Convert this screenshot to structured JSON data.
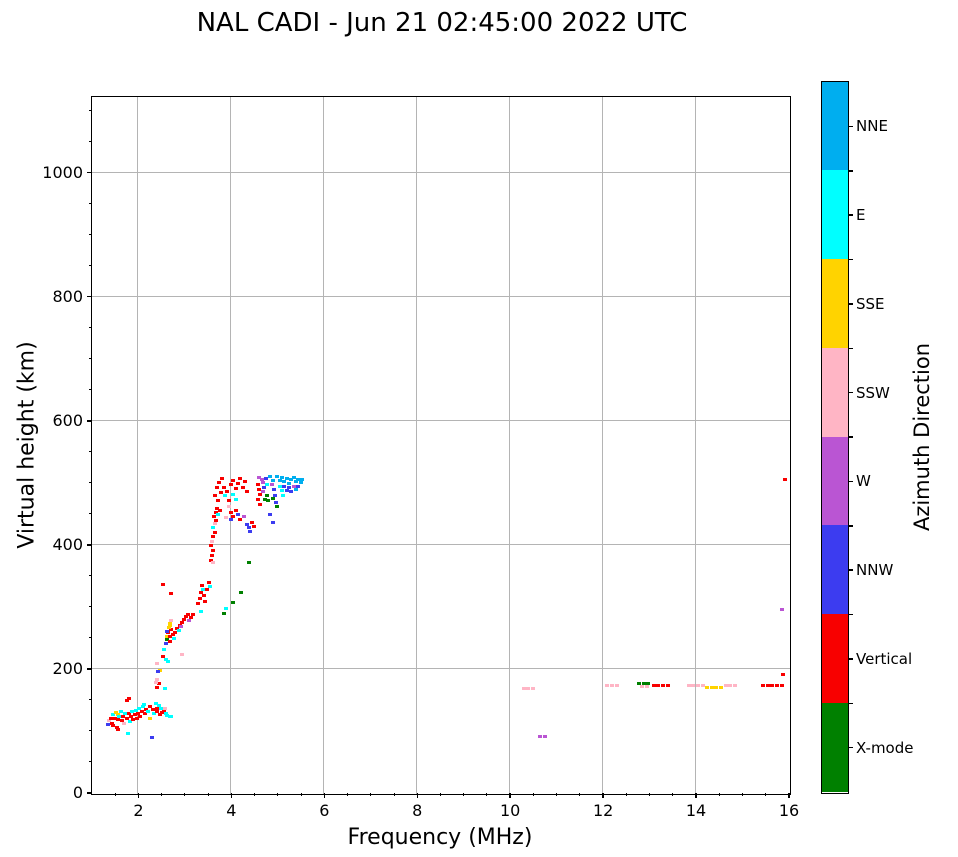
{
  "chart_data": {
    "type": "scatter",
    "title": "NAL CADI - Jun 21 02:45:00 2022 UTC",
    "xlabel": "Frequency (MHz)",
    "ylabel": "Virtual height (km)",
    "colorbar_label": "Azimuth Direction",
    "xlim": [
      1,
      16
    ],
    "ylim": [
      0,
      1122
    ],
    "xticks": [
      2,
      4,
      6,
      8,
      10,
      12,
      14,
      16
    ],
    "yticks": [
      0,
      200,
      400,
      600,
      800,
      1000
    ],
    "x_minor_step": 0.5,
    "y_minor_step": 50,
    "grid": true,
    "grid_color": "#b4b4b4",
    "marker": "small-square",
    "directions_bottom_to_top": [
      {
        "key": "X",
        "label": "X-mode",
        "color": "#008000"
      },
      {
        "key": "V",
        "label": "Vertical",
        "color": "#f80000"
      },
      {
        "key": "NNW",
        "label": "NNW",
        "color": "#3c3cf0"
      },
      {
        "key": "W",
        "label": "W",
        "color": "#ba55d3"
      },
      {
        "key": "SSW",
        "label": "SSW",
        "color": "#ffb5c5"
      },
      {
        "key": "SSE",
        "label": "SSE",
        "color": "#ffd300"
      },
      {
        "key": "E",
        "label": "E",
        "color": "#00ffff"
      },
      {
        "key": "NNE",
        "label": "NNE",
        "color": "#00aeef"
      }
    ],
    "points": [
      [
        1.35,
        110,
        "NNW"
      ],
      [
        1.38,
        116,
        "SSW"
      ],
      [
        1.42,
        119,
        "V"
      ],
      [
        1.45,
        112,
        "V"
      ],
      [
        1.47,
        125,
        "E"
      ],
      [
        1.5,
        120,
        "V"
      ],
      [
        1.52,
        129,
        "SSE"
      ],
      [
        1.56,
        126,
        "SSE"
      ],
      [
        1.55,
        104,
        "V"
      ],
      [
        1.58,
        118,
        "V"
      ],
      [
        1.6,
        123,
        "E"
      ],
      [
        1.63,
        130,
        "E"
      ],
      [
        1.65,
        116,
        "V"
      ],
      [
        1.68,
        122,
        "V"
      ],
      [
        1.7,
        112,
        "SSW"
      ],
      [
        1.72,
        127,
        "E"
      ],
      [
        1.78,
        95,
        "E"
      ],
      [
        1.77,
        120,
        "V"
      ],
      [
        1.8,
        128,
        "V"
      ],
      [
        1.82,
        114,
        "E"
      ],
      [
        1.85,
        123,
        "V"
      ],
      [
        1.88,
        131,
        "E"
      ],
      [
        1.9,
        118,
        "V"
      ],
      [
        1.93,
        125,
        "V"
      ],
      [
        1.95,
        132,
        "E"
      ],
      [
        1.98,
        120,
        "V"
      ],
      [
        2.0,
        127,
        "V"
      ],
      [
        2.03,
        135,
        "E"
      ],
      [
        2.05,
        122,
        "V"
      ],
      [
        2.08,
        130,
        "V"
      ],
      [
        2.1,
        138,
        "E"
      ],
      [
        2.14,
        142,
        "E"
      ],
      [
        2.16,
        128,
        "V"
      ],
      [
        2.18,
        134,
        "V"
      ],
      [
        2.22,
        131,
        "E"
      ],
      [
        2.25,
        138,
        "V"
      ],
      [
        2.25,
        119,
        "SSE"
      ],
      [
        2.3,
        89,
        "NNW"
      ],
      [
        2.32,
        134,
        "V"
      ],
      [
        2.35,
        128,
        "E"
      ],
      [
        2.38,
        143,
        "E"
      ],
      [
        2.4,
        136,
        "V"
      ],
      [
        2.42,
        130,
        "V"
      ],
      [
        2.45,
        140,
        "E"
      ],
      [
        2.48,
        125,
        "V"
      ],
      [
        2.5,
        135,
        "E"
      ],
      [
        2.52,
        129,
        "V"
      ],
      [
        2.55,
        131,
        "V"
      ],
      [
        2.58,
        136,
        "SSW"
      ],
      [
        2.6,
        127,
        "E"
      ],
      [
        2.63,
        124,
        "E"
      ],
      [
        2.68,
        122,
        "E"
      ],
      [
        2.72,
        123,
        "E"
      ],
      [
        1.76,
        148,
        "V"
      ],
      [
        1.8,
        152,
        "V"
      ],
      [
        1.47,
        108,
        "V"
      ],
      [
        1.58,
        101,
        "V"
      ],
      [
        2.42,
        170,
        "V"
      ],
      [
        2.46,
        175,
        "V"
      ],
      [
        2.58,
        168,
        "E"
      ],
      [
        2.42,
        182,
        "SSW"
      ],
      [
        2.48,
        196,
        "SSE"
      ],
      [
        2.44,
        195,
        "NNW"
      ],
      [
        2.38,
        178,
        "SSW"
      ],
      [
        2.53,
        219,
        "V"
      ],
      [
        2.6,
        214,
        "E"
      ],
      [
        2.64,
        211,
        "E"
      ],
      [
        2.4,
        208,
        "SSW"
      ],
      [
        2.56,
        231,
        "E"
      ],
      [
        2.6,
        240,
        "NNW"
      ],
      [
        2.62,
        252,
        "SSE"
      ],
      [
        2.63,
        247,
        "X"
      ],
      [
        2.65,
        258,
        "V"
      ],
      [
        2.68,
        244,
        "V"
      ],
      [
        2.7,
        252,
        "V"
      ],
      [
        2.72,
        262,
        "V"
      ],
      [
        2.66,
        266,
        "SSE"
      ],
      [
        2.62,
        259,
        "NNW"
      ],
      [
        2.7,
        269,
        "SSE"
      ],
      [
        2.75,
        255,
        "V"
      ],
      [
        2.78,
        248,
        "E"
      ],
      [
        2.8,
        258,
        "V"
      ],
      [
        2.95,
        222,
        "SSW"
      ],
      [
        2.85,
        264,
        "V"
      ],
      [
        2.88,
        261,
        "E"
      ],
      [
        2.72,
        278,
        "SSW"
      ],
      [
        2.68,
        272,
        "SSE"
      ],
      [
        2.9,
        270,
        "V"
      ],
      [
        2.94,
        274,
        "V"
      ],
      [
        2.99,
        279,
        "V"
      ],
      [
        3.04,
        283,
        "V"
      ],
      [
        3.1,
        277,
        "W"
      ],
      [
        2.92,
        267,
        "W"
      ],
      [
        3.07,
        287,
        "V"
      ],
      [
        3.14,
        282,
        "V"
      ],
      [
        3.19,
        287,
        "V"
      ],
      [
        2.53,
        335,
        "V"
      ],
      [
        2.72,
        321,
        "V"
      ],
      [
        3.3,
        305,
        "V"
      ],
      [
        3.33,
        312,
        "V"
      ],
      [
        3.35,
        322,
        "V"
      ],
      [
        3.38,
        334,
        "V"
      ],
      [
        3.4,
        328,
        "E"
      ],
      [
        3.42,
        318,
        "V"
      ],
      [
        3.35,
        291,
        "E"
      ],
      [
        3.45,
        308,
        "V"
      ],
      [
        3.52,
        339,
        "V"
      ],
      [
        3.55,
        332,
        "E"
      ],
      [
        3.48,
        327,
        "V"
      ],
      [
        3.58,
        374,
        "V"
      ],
      [
        3.6,
        382,
        "V"
      ],
      [
        3.62,
        390,
        "V"
      ],
      [
        3.58,
        398,
        "V"
      ],
      [
        3.62,
        371,
        "SSW"
      ],
      [
        3.6,
        405,
        "SSW"
      ],
      [
        3.62,
        412,
        "V"
      ],
      [
        3.65,
        419,
        "V"
      ],
      [
        3.62,
        427,
        "E"
      ],
      [
        3.65,
        433,
        "SSW"
      ],
      [
        3.68,
        438,
        "V"
      ],
      [
        3.63,
        445,
        "V"
      ],
      [
        3.68,
        452,
        "V"
      ],
      [
        3.7,
        458,
        "V"
      ],
      [
        3.73,
        448,
        "E"
      ],
      [
        3.76,
        455,
        "V"
      ],
      [
        3.7,
        492,
        "V"
      ],
      [
        3.75,
        500,
        "V"
      ],
      [
        3.8,
        506,
        "V"
      ],
      [
        3.66,
        478,
        "V"
      ],
      [
        3.72,
        470,
        "V"
      ],
      [
        3.78,
        484,
        "V"
      ],
      [
        3.85,
        491,
        "V"
      ],
      [
        3.88,
        478,
        "E"
      ],
      [
        3.92,
        486,
        "V"
      ],
      [
        3.95,
        470,
        "V"
      ],
      [
        4.0,
        496,
        "V"
      ],
      [
        4.05,
        503,
        "V"
      ],
      [
        4.1,
        490,
        "V"
      ],
      [
        4.15,
        498,
        "V"
      ],
      [
        4.2,
        506,
        "V"
      ],
      [
        4.25,
        492,
        "V"
      ],
      [
        4.3,
        501,
        "V"
      ],
      [
        4.35,
        486,
        "V"
      ],
      [
        4.05,
        480,
        "E"
      ],
      [
        4.1,
        472,
        "E"
      ],
      [
        3.95,
        461,
        "SSW"
      ],
      [
        3.9,
        443,
        "SSW"
      ],
      [
        4.0,
        452,
        "V"
      ],
      [
        4.05,
        445,
        "V"
      ],
      [
        4.1,
        455,
        "V"
      ],
      [
        4.15,
        448,
        "NNW"
      ],
      [
        4.0,
        440,
        "NNW"
      ],
      [
        4.2,
        440,
        "V"
      ],
      [
        4.28,
        445,
        "W"
      ],
      [
        4.35,
        432,
        "NNW"
      ],
      [
        4.4,
        428,
        "NNW"
      ],
      [
        4.45,
        436,
        "V"
      ],
      [
        4.42,
        420,
        "NNW"
      ],
      [
        4.5,
        429,
        "V"
      ],
      [
        4.6,
        508,
        "W"
      ],
      [
        4.66,
        504,
        "W"
      ],
      [
        4.58,
        497,
        "V"
      ],
      [
        4.6,
        489,
        "V"
      ],
      [
        4.62,
        481,
        "V"
      ],
      [
        4.58,
        472,
        "V"
      ],
      [
        4.62,
        464,
        "V"
      ],
      [
        4.7,
        500,
        "W"
      ],
      [
        4.75,
        506,
        "NNW"
      ],
      [
        4.72,
        492,
        "NNW"
      ],
      [
        4.78,
        497,
        "E"
      ],
      [
        4.7,
        485,
        "W"
      ],
      [
        4.78,
        479,
        "X"
      ],
      [
        4.73,
        473,
        "X"
      ],
      [
        4.8,
        470,
        "X"
      ],
      [
        4.85,
        509,
        "NNE"
      ],
      [
        4.9,
        503,
        "NNE"
      ],
      [
        4.88,
        496,
        "W"
      ],
      [
        4.92,
        488,
        "NNW"
      ],
      [
        4.95,
        479,
        "NNW"
      ],
      [
        4.9,
        474,
        "X"
      ],
      [
        4.98,
        468,
        "NNW"
      ],
      [
        5.0,
        509,
        "NNE"
      ],
      [
        5.05,
        503,
        "NNE"
      ],
      [
        5.1,
        507,
        "NNE"
      ],
      [
        5.15,
        501,
        "NNE"
      ],
      [
        5.2,
        506,
        "NNE"
      ],
      [
        5.25,
        498,
        "NNE"
      ],
      [
        5.3,
        504,
        "NNE"
      ],
      [
        5.35,
        508,
        "NNE"
      ],
      [
        5.4,
        501,
        "NNE"
      ],
      [
        5.45,
        505,
        "NNE"
      ],
      [
        5.05,
        493,
        "E"
      ],
      [
        5.1,
        487,
        "E"
      ],
      [
        5.15,
        493,
        "NNW"
      ],
      [
        5.2,
        487,
        "NNW"
      ],
      [
        5.25,
        491,
        "NNW"
      ],
      [
        5.3,
        485,
        "NNW"
      ],
      [
        5.12,
        478,
        "E"
      ],
      [
        5.35,
        493,
        "W"
      ],
      [
        5.4,
        488,
        "NNE"
      ],
      [
        5.45,
        494,
        "NNW"
      ],
      [
        5.5,
        499,
        "NNE"
      ],
      [
        5.52,
        504,
        "NNE"
      ],
      [
        5.0,
        461,
        "X"
      ],
      [
        4.85,
        448,
        "NNW"
      ],
      [
        4.9,
        436,
        "NNW"
      ],
      [
        3.85,
        288,
        "X"
      ],
      [
        3.9,
        296,
        "E"
      ],
      [
        4.05,
        306,
        "X"
      ],
      [
        4.22,
        322,
        "X"
      ],
      [
        4.4,
        371,
        "X"
      ],
      [
        10.3,
        168,
        "SSW"
      ],
      [
        10.4,
        168,
        "SSW"
      ],
      [
        10.5,
        168,
        "SSW"
      ],
      [
        10.65,
        90,
        "W"
      ],
      [
        10.75,
        90,
        "W"
      ],
      [
        12.1,
        172,
        "SSW"
      ],
      [
        12.2,
        172,
        "SSW"
      ],
      [
        12.3,
        172,
        "SSW"
      ],
      [
        12.78,
        176,
        "X"
      ],
      [
        12.88,
        176,
        "X"
      ],
      [
        12.98,
        176,
        "X"
      ],
      [
        12.85,
        171,
        "SSW"
      ],
      [
        12.95,
        171,
        "SSW"
      ],
      [
        13.1,
        172,
        "V"
      ],
      [
        13.2,
        172,
        "V"
      ],
      [
        13.3,
        172,
        "V"
      ],
      [
        13.4,
        172,
        "V"
      ],
      [
        13.85,
        172,
        "SSW"
      ],
      [
        13.95,
        172,
        "SSW"
      ],
      [
        14.05,
        172,
        "SSW"
      ],
      [
        14.15,
        172,
        "SSW"
      ],
      [
        14.25,
        170,
        "SSE"
      ],
      [
        14.35,
        170,
        "SSE"
      ],
      [
        14.45,
        170,
        "SSE"
      ],
      [
        14.55,
        170,
        "SSE"
      ],
      [
        14.65,
        172,
        "SSW"
      ],
      [
        14.75,
        172,
        "SSW"
      ],
      [
        14.85,
        172,
        "SSW"
      ],
      [
        15.45,
        172,
        "V"
      ],
      [
        15.55,
        172,
        "V"
      ],
      [
        15.65,
        172,
        "V"
      ],
      [
        15.75,
        172,
        "V"
      ],
      [
        15.85,
        172,
        "V"
      ],
      [
        15.88,
        190,
        "V"
      ],
      [
        15.92,
        505,
        "V"
      ],
      [
        15.85,
        295,
        "W"
      ]
    ]
  }
}
